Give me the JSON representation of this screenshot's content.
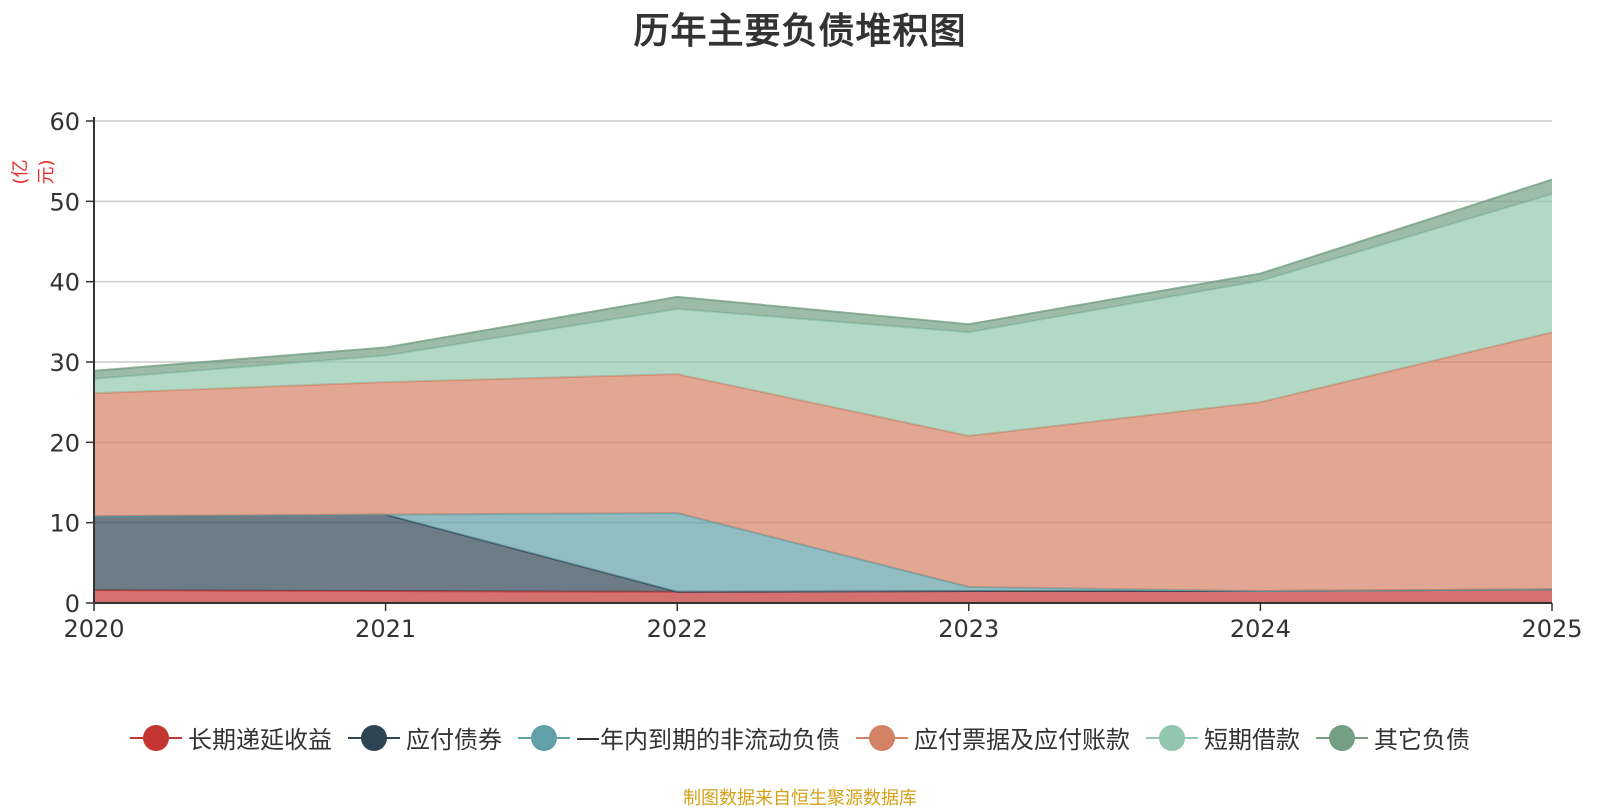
{
  "chart_data": {
    "type": "area",
    "stacked": true,
    "title": "历年主要负债堆积图",
    "ylabel": "(亿元)",
    "xlabel": "",
    "categories": [
      "2020",
      "2021",
      "2022",
      "2023",
      "2024",
      "2025"
    ],
    "ylim": [
      0,
      60
    ],
    "yticks": [
      0,
      10,
      20,
      30,
      40,
      50,
      60
    ],
    "grid": true,
    "legend_position": "bottom",
    "series": [
      {
        "name": "长期递延收益",
        "color": "#c23531",
        "values": [
          1.6,
          1.5,
          1.4,
          1.5,
          1.5,
          1.7
        ]
      },
      {
        "name": "应付债券",
        "color": "#2f4554",
        "values": [
          9.2,
          9.5,
          0,
          0,
          0,
          0
        ]
      },
      {
        "name": "一年内到期的非流动负债",
        "color": "#61a0a8",
        "values": [
          0,
          0,
          9.8,
          0.5,
          0,
          0
        ]
      },
      {
        "name": "应付票据及应付账款",
        "color": "#d48265",
        "values": [
          15.3,
          16.5,
          17.3,
          18.8,
          23.5,
          32.0
        ]
      },
      {
        "name": "短期借款",
        "color": "#91c7ae",
        "values": [
          1.8,
          3.3,
          8.1,
          12.9,
          15.1,
          17.2
        ]
      },
      {
        "name": "其它负债",
        "color": "#749f83",
        "values": [
          1.0,
          1.0,
          1.5,
          1.0,
          0.9,
          1.8
        ]
      }
    ]
  },
  "source": "制图数据来自恒生聚源数据库"
}
